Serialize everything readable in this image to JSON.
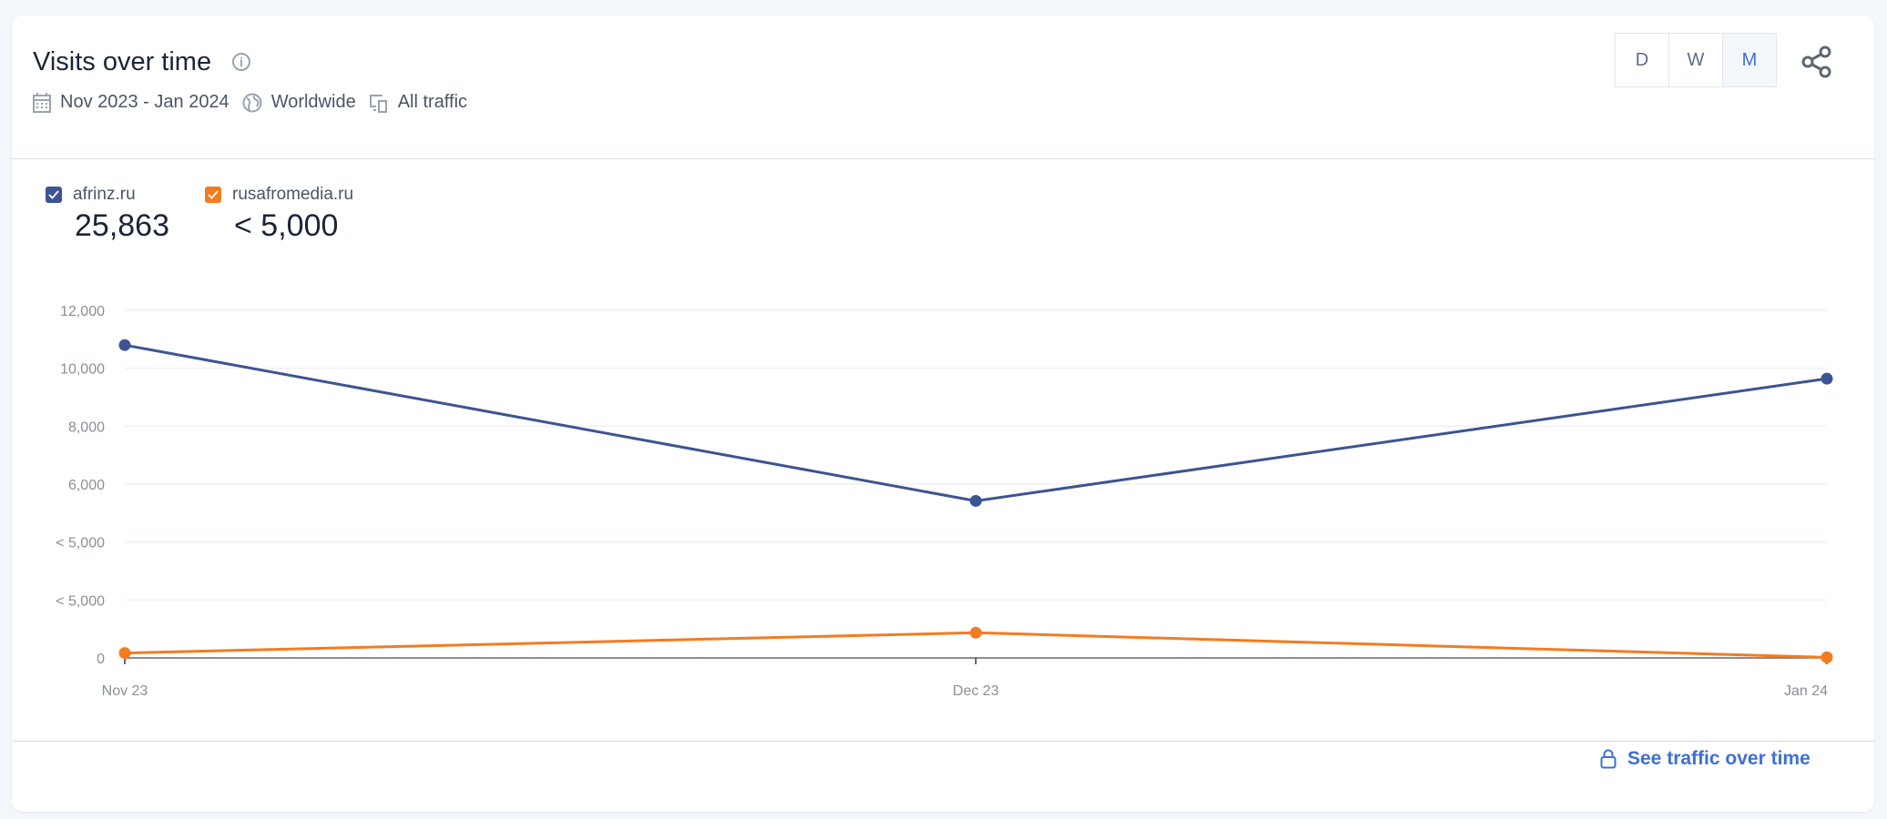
{
  "header": {
    "title": "Visits over time",
    "info_icon": "info-icon",
    "date_range": "Nov 2023 - Jan 2024",
    "region": "Worldwide",
    "traffic": "All traffic"
  },
  "granularity": {
    "options": [
      "D",
      "W",
      "M"
    ],
    "selected": "M"
  },
  "legend": [
    {
      "domain": "afrinz.ru",
      "total": "25,863",
      "color": "#3e5393",
      "checked": true
    },
    {
      "domain": "rusafromedia.ru",
      "total": "< 5,000",
      "color": "#f47b20",
      "checked": true
    }
  ],
  "footer": {
    "link_label": "See traffic over time",
    "accent": "#3f6fd8"
  },
  "chart_data": {
    "type": "line",
    "x": [
      "Nov 23",
      "Dec 23",
      "Jan 24"
    ],
    "ylim": [
      0,
      12000
    ],
    "yticks": [
      0,
      2000,
      4000,
      6000,
      8000,
      10000,
      12000
    ],
    "ytick_labels": [
      "0",
      "< 5,000",
      "< 5,000",
      "6,000",
      "8,000",
      "10,000",
      "12,000"
    ],
    "grid": true,
    "series": [
      {
        "name": "afrinz.ru",
        "color": "#3e5393",
        "values": [
          10800,
          5420,
          9640
        ]
      },
      {
        "name": "rusafromedia.ru",
        "color": "#f47b20",
        "values": [
          170,
          870,
          20
        ]
      }
    ]
  }
}
